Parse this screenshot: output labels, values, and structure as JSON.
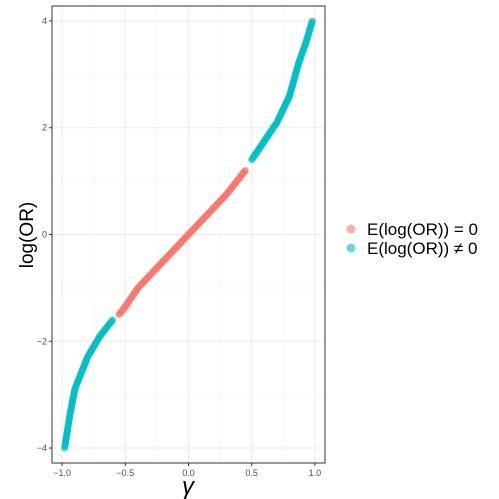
{
  "chart_data": {
    "type": "scatter",
    "xlabel": "γ",
    "ylabel": "log(OR)",
    "xlim": [
      -1.08,
      1.08
    ],
    "ylim": [
      -4.28,
      4.28
    ],
    "x_ticks": [
      -1.0,
      -0.5,
      0.0,
      0.5,
      1.0
    ],
    "x_tick_labels": [
      "−1.0",
      "−0.5",
      "0.0",
      "0.5",
      "1.0"
    ],
    "y_ticks": [
      -4,
      -2,
      0,
      2,
      4
    ],
    "y_tick_labels": [
      "−4",
      "−2",
      "0",
      "2",
      "4"
    ],
    "grid": true,
    "legend_position": "right",
    "relationship": "log(OR) ≈ 4·atanh(γ)/π (S-shaped curve)",
    "series": [
      {
        "name": "E(log(OR)) = 0",
        "color": "#F8766D",
        "x_range": [
          -0.55,
          0.45
        ],
        "points": [
          [
            -0.55,
            -1.5
          ],
          [
            -0.5,
            -1.35
          ],
          [
            -0.4,
            -1.0
          ],
          [
            -0.3,
            -0.75
          ],
          [
            -0.2,
            -0.5
          ],
          [
            -0.1,
            -0.25
          ],
          [
            0.0,
            0.0
          ],
          [
            0.1,
            0.25
          ],
          [
            0.2,
            0.5
          ],
          [
            0.3,
            0.75
          ],
          [
            0.4,
            1.05
          ],
          [
            0.45,
            1.2
          ]
        ]
      },
      {
        "name": "E(log(OR)) ≠ 0",
        "color": "#00BFC4",
        "x_range": [
          -0.98,
          0.98
        ],
        "points": [
          [
            -0.98,
            -4.0
          ],
          [
            -0.94,
            -3.4
          ],
          [
            -0.9,
            -2.9
          ],
          [
            -0.8,
            -2.3
          ],
          [
            -0.7,
            -1.9
          ],
          [
            -0.6,
            -1.6
          ],
          [
            0.5,
            1.4
          ],
          [
            0.6,
            1.75
          ],
          [
            0.7,
            2.1
          ],
          [
            0.8,
            2.6
          ],
          [
            0.87,
            3.2
          ],
          [
            0.93,
            3.6
          ],
          [
            0.98,
            4.0
          ]
        ]
      }
    ]
  }
}
